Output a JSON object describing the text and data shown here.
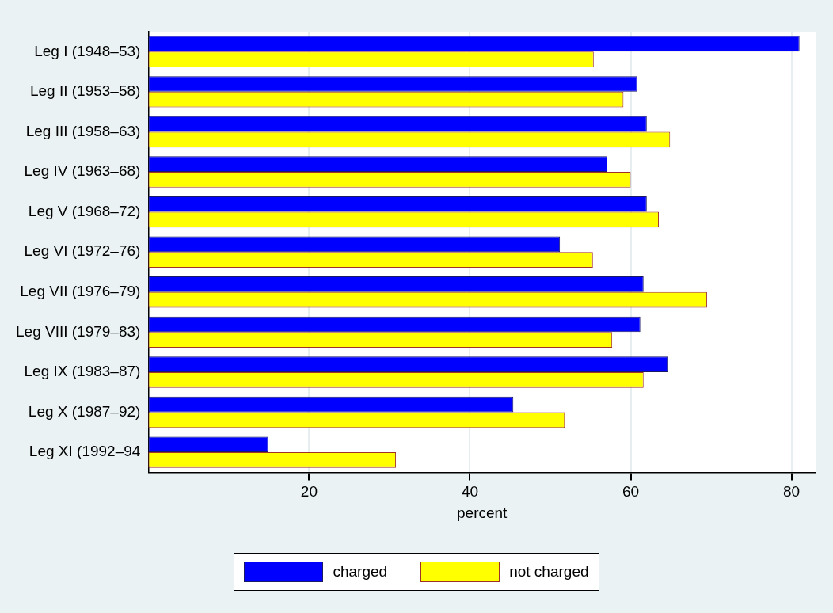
{
  "chart_data": {
    "type": "bar",
    "orientation": "horizontal",
    "xlabel": "percent",
    "categories": [
      "Leg I (1948–53)",
      "Leg II (1953–58)",
      "Leg III (1958–63)",
      "Leg IV (1963–68)",
      "Leg V (1968–72)",
      "Leg VI (1972–76)",
      "Leg VII (1976–79)",
      "Leg VIII (1979–83)",
      "Leg IX (1983–87)",
      "Leg X (1987–92)",
      "Leg XI (1992–94"
    ],
    "series": [
      {
        "name": "charged",
        "color": "#0000ff",
        "values": [
          81.0,
          60.8,
          62.0,
          57.1,
          62.0,
          51.2,
          61.6,
          61.2,
          64.6,
          45.4,
          14.9
        ]
      },
      {
        "name": "not charged",
        "color": "#ffff00",
        "values": [
          55.4,
          59.1,
          64.9,
          60.0,
          63.5,
          55.3,
          69.5,
          57.7,
          61.6,
          51.8,
          30.8
        ]
      }
    ],
    "xlim": [
      0,
      83
    ],
    "xticks": [
      20,
      40,
      60,
      80
    ],
    "grid": "x",
    "legend": "bottom"
  }
}
